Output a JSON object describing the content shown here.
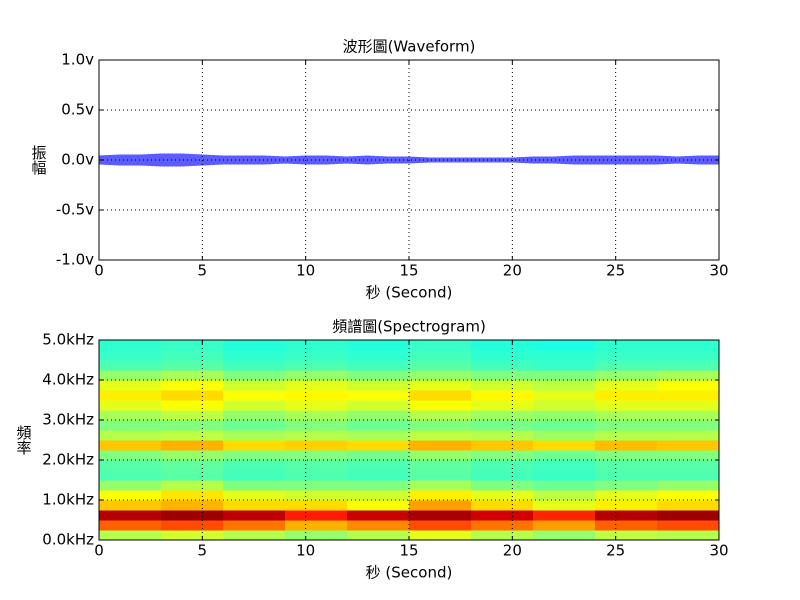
{
  "chart_data": [
    {
      "type": "waveform",
      "title": "波形圖(Waveform)",
      "x_label": "秒 (Second)",
      "y_label": "振幅",
      "x": [
        0,
        1,
        2,
        3,
        4,
        5,
        6,
        7,
        8,
        9,
        10,
        11,
        12,
        13,
        14,
        15,
        16,
        17,
        18,
        19,
        20,
        21,
        22,
        23,
        24,
        25,
        26,
        27,
        28,
        29,
        30
      ],
      "amplitude": [
        0.04,
        0.05,
        0.05,
        0.06,
        0.06,
        0.05,
        0.04,
        0.04,
        0.04,
        0.03,
        0.04,
        0.04,
        0.03,
        0.04,
        0.03,
        0.03,
        0.02,
        0.02,
        0.02,
        0.02,
        0.02,
        0.03,
        0.03,
        0.04,
        0.04,
        0.04,
        0.04,
        0.04,
        0.03,
        0.04,
        0.04
      ],
      "color": "#5b5bff",
      "grid": true,
      "xlim": [
        0,
        30
      ],
      "xticks": [
        0,
        5,
        10,
        15,
        20,
        25,
        30
      ],
      "ylim": [
        -1,
        1
      ],
      "yticks": [
        {
          "value": -1,
          "label": "-1.0v"
        },
        {
          "value": -0.5,
          "label": "-0.5v"
        },
        {
          "value": 0,
          "label": "0.0v"
        },
        {
          "value": 0.5,
          "label": "0.5v"
        },
        {
          "value": 1,
          "label": "1.0v"
        }
      ]
    },
    {
      "type": "heatmap",
      "title": "頻譜圖(Spectrogram)",
      "x_label": "秒 (Second)",
      "y_label": "頻率",
      "colormap": "jet",
      "clim": [
        0,
        1
      ],
      "grid": true,
      "x_edges": [
        0,
        3,
        6,
        9,
        12,
        15,
        18,
        21,
        24,
        27,
        30
      ],
      "y_edges": [
        0,
        250,
        500,
        750,
        1000,
        1250,
        1500,
        1750,
        2000,
        2250,
        2500,
        2750,
        3000,
        3250,
        3500,
        3750,
        4000,
        4250,
        4500,
        4750,
        5000
      ],
      "z": [
        [
          0.55,
          0.58,
          0.55,
          0.52,
          0.55,
          0.6,
          0.55,
          0.52,
          0.56,
          0.55
        ],
        [
          0.78,
          0.8,
          0.76,
          0.7,
          0.74,
          0.8,
          0.76,
          0.72,
          0.78,
          0.8
        ],
        [
          0.95,
          0.97,
          0.94,
          0.85,
          0.93,
          0.96,
          0.92,
          0.84,
          0.95,
          0.97
        ],
        [
          0.68,
          0.7,
          0.66,
          0.66,
          0.62,
          0.72,
          0.66,
          0.6,
          0.64,
          0.66
        ],
        [
          0.62,
          0.65,
          0.6,
          0.58,
          0.58,
          0.64,
          0.6,
          0.56,
          0.6,
          0.62
        ],
        [
          0.52,
          0.55,
          0.5,
          0.5,
          0.5,
          0.54,
          0.5,
          0.48,
          0.5,
          0.52
        ],
        [
          0.45,
          0.46,
          0.44,
          0.45,
          0.44,
          0.46,
          0.44,
          0.43,
          0.45,
          0.45
        ],
        [
          0.46,
          0.47,
          0.45,
          0.46,
          0.45,
          0.47,
          0.45,
          0.44,
          0.46,
          0.46
        ],
        [
          0.5,
          0.52,
          0.5,
          0.5,
          0.49,
          0.52,
          0.5,
          0.48,
          0.5,
          0.5
        ],
        [
          0.68,
          0.7,
          0.66,
          0.67,
          0.66,
          0.7,
          0.68,
          0.66,
          0.69,
          0.68
        ],
        [
          0.55,
          0.56,
          0.54,
          0.55,
          0.54,
          0.56,
          0.55,
          0.53,
          0.55,
          0.55
        ],
        [
          0.5,
          0.5,
          0.48,
          0.5,
          0.48,
          0.5,
          0.49,
          0.48,
          0.5,
          0.5
        ],
        [
          0.54,
          0.56,
          0.52,
          0.54,
          0.52,
          0.55,
          0.53,
          0.52,
          0.54,
          0.54
        ],
        [
          0.6,
          0.62,
          0.58,
          0.6,
          0.58,
          0.62,
          0.6,
          0.58,
          0.6,
          0.6
        ],
        [
          0.64,
          0.66,
          0.62,
          0.63,
          0.62,
          0.66,
          0.63,
          0.6,
          0.64,
          0.64
        ],
        [
          0.6,
          0.62,
          0.58,
          0.6,
          0.58,
          0.6,
          0.58,
          0.56,
          0.6,
          0.62
        ],
        [
          0.52,
          0.54,
          0.5,
          0.52,
          0.5,
          0.52,
          0.5,
          0.5,
          0.52,
          0.54
        ],
        [
          0.45,
          0.46,
          0.44,
          0.45,
          0.44,
          0.46,
          0.44,
          0.43,
          0.45,
          0.45
        ],
        [
          0.43,
          0.44,
          0.42,
          0.43,
          0.42,
          0.44,
          0.42,
          0.42,
          0.43,
          0.43
        ],
        [
          0.42,
          0.43,
          0.41,
          0.42,
          0.41,
          0.43,
          0.41,
          0.4,
          0.42,
          0.42
        ]
      ],
      "xlim": [
        0,
        30
      ],
      "xticks": [
        0,
        5,
        10,
        15,
        20,
        25,
        30
      ],
      "ylim": [
        0,
        5000
      ],
      "yticks": [
        {
          "value": 0,
          "label": "0.0kHz"
        },
        {
          "value": 1000,
          "label": "1.0kHz"
        },
        {
          "value": 2000,
          "label": "2.0kHz"
        },
        {
          "value": 3000,
          "label": "3.0kHz"
        },
        {
          "value": 4000,
          "label": "4.0kHz"
        },
        {
          "value": 5000,
          "label": "5.0kHz"
        }
      ]
    }
  ]
}
